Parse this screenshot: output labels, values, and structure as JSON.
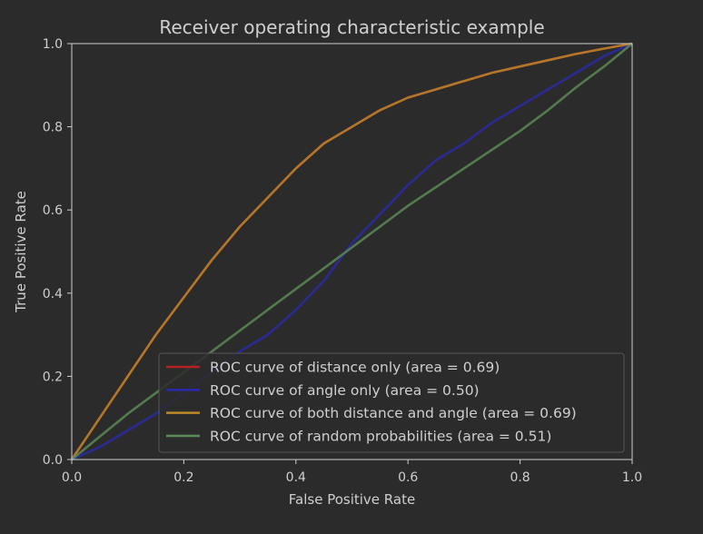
{
  "chart_data": {
    "type": "line",
    "title": "Receiver operating characteristic example",
    "xlabel": "False Positive Rate",
    "ylabel": "True Positive Rate",
    "xlim": [
      0.0,
      1.0
    ],
    "ylim": [
      0.0,
      1.0
    ],
    "xticks": [
      "0.0",
      "0.2",
      "0.4",
      "0.6",
      "0.8",
      "1.0"
    ],
    "yticks": [
      "0.0",
      "0.2",
      "0.4",
      "0.6",
      "0.8",
      "1.0"
    ],
    "grid": false,
    "legend_position": "lower-right",
    "series": [
      {
        "name": "ROC curve of distance only (area = 0.69)",
        "color": "#b22222",
        "x": [
          0.0,
          0.05,
          0.1,
          0.15,
          0.2,
          0.25,
          0.3,
          0.35,
          0.4,
          0.45,
          0.5,
          0.55,
          0.6,
          0.65,
          0.7,
          0.75,
          0.8,
          0.85,
          0.9,
          0.95,
          1.0
        ],
        "y": [
          0.0,
          0.1,
          0.2,
          0.3,
          0.39,
          0.48,
          0.56,
          0.63,
          0.7,
          0.76,
          0.8,
          0.84,
          0.87,
          0.89,
          0.91,
          0.93,
          0.945,
          0.96,
          0.975,
          0.988,
          1.0
        ]
      },
      {
        "name": "ROC curve of angle only (area = 0.50)",
        "color": "#2a2aa8",
        "x": [
          0.0,
          0.05,
          0.1,
          0.15,
          0.2,
          0.25,
          0.3,
          0.35,
          0.4,
          0.45,
          0.5,
          0.55,
          0.6,
          0.65,
          0.7,
          0.75,
          0.8,
          0.85,
          0.9,
          0.95,
          1.0
        ],
        "y": [
          0.0,
          0.03,
          0.07,
          0.11,
          0.16,
          0.21,
          0.26,
          0.3,
          0.36,
          0.43,
          0.52,
          0.59,
          0.66,
          0.72,
          0.76,
          0.81,
          0.85,
          0.89,
          0.93,
          0.97,
          1.0
        ]
      },
      {
        "name": "ROC curve of both distance and angle (area = 0.69)",
        "color": "#b8862b",
        "x": [
          0.0,
          0.05,
          0.1,
          0.15,
          0.2,
          0.25,
          0.3,
          0.35,
          0.4,
          0.45,
          0.5,
          0.55,
          0.6,
          0.65,
          0.7,
          0.75,
          0.8,
          0.85,
          0.9,
          0.95,
          1.0
        ],
        "y": [
          0.0,
          0.1,
          0.2,
          0.3,
          0.39,
          0.48,
          0.56,
          0.63,
          0.7,
          0.76,
          0.8,
          0.84,
          0.87,
          0.89,
          0.91,
          0.93,
          0.945,
          0.96,
          0.975,
          0.988,
          1.0
        ]
      },
      {
        "name": "ROC curve of random probabilities (area = 0.51)",
        "color": "#5a8a55",
        "x": [
          0.0,
          0.05,
          0.1,
          0.15,
          0.2,
          0.25,
          0.3,
          0.35,
          0.4,
          0.45,
          0.5,
          0.55,
          0.6,
          0.65,
          0.7,
          0.75,
          0.8,
          0.85,
          0.9,
          0.95,
          1.0
        ],
        "y": [
          0.0,
          0.055,
          0.11,
          0.16,
          0.21,
          0.26,
          0.31,
          0.36,
          0.41,
          0.46,
          0.51,
          0.56,
          0.61,
          0.655,
          0.7,
          0.745,
          0.79,
          0.84,
          0.895,
          0.945,
          1.0
        ]
      }
    ]
  }
}
